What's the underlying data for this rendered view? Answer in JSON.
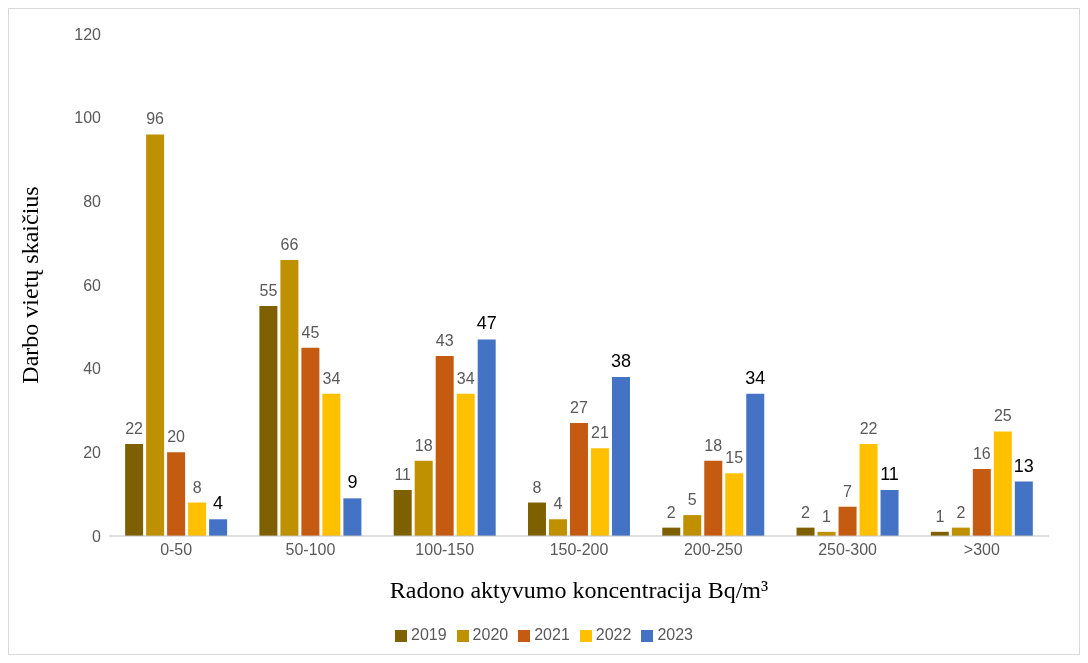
{
  "chart_data": {
    "type": "bar",
    "xlabel": "Radono aktyvumo koncentracija Bq/m³",
    "ylabel": "Darbo vietų skaičius",
    "categories": [
      "0-50",
      "50-100",
      "100-150",
      "150-200",
      "200-250",
      "250-300",
      ">300"
    ],
    "series": [
      {
        "name": "2019",
        "color": "#7f6000",
        "values": [
          22,
          55,
          11,
          8,
          2,
          2,
          1
        ]
      },
      {
        "name": "2020",
        "color": "#bf9000",
        "values": [
          96,
          66,
          18,
          4,
          5,
          1,
          2
        ]
      },
      {
        "name": "2021",
        "color": "#c55a11",
        "values": [
          20,
          45,
          43,
          27,
          18,
          7,
          16
        ]
      },
      {
        "name": "2022",
        "color": "#ffc000",
        "values": [
          8,
          34,
          34,
          21,
          15,
          22,
          25
        ]
      },
      {
        "name": "2023",
        "color": "#4472c4",
        "values": [
          4,
          9,
          47,
          38,
          34,
          11,
          13
        ]
      }
    ],
    "ylim": [
      0,
      120
    ],
    "yticks": [
      0,
      20,
      40,
      60,
      80,
      100,
      120
    ],
    "grid": false,
    "legend": "bottom",
    "data_labels": true
  }
}
